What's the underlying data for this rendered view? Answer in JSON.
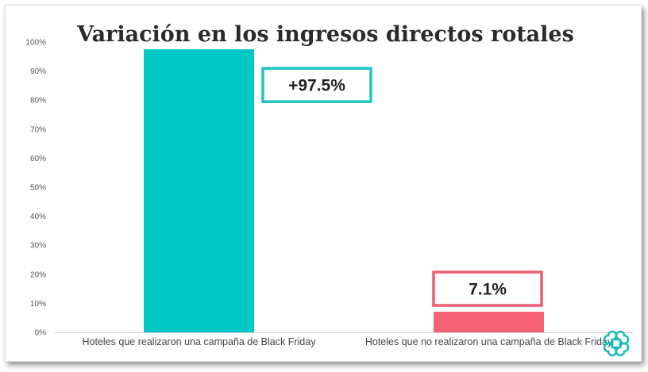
{
  "chart_data": {
    "type": "bar",
    "title": "Variación en los ingresos directos rotales",
    "categories": [
      "Hoteles que realizaron una campaña de Black Friday",
      "Hoteles que no realizaron una campaña de Black Friday"
    ],
    "values": [
      97.5,
      7.1
    ],
    "data_labels": [
      "+97.5%",
      "7.1%"
    ],
    "colors": [
      "#00c9c5",
      "#f56274"
    ],
    "label_border_colors": [
      "#1fc4c4",
      "#ec5f73"
    ],
    "ylim": [
      0,
      100
    ],
    "yticks": [
      0,
      10,
      20,
      30,
      40,
      50,
      60,
      70,
      80,
      90,
      100
    ],
    "ytick_labels": [
      "0%",
      "10%",
      "20%",
      "30%",
      "40%",
      "50%",
      "60%",
      "70%",
      "80%",
      "90%",
      "100%"
    ],
    "xlabel": "",
    "ylabel": "",
    "grid": false,
    "legend": "none"
  },
  "logo": {
    "icon": "command-key-icon",
    "color": "#1bbdb5"
  }
}
